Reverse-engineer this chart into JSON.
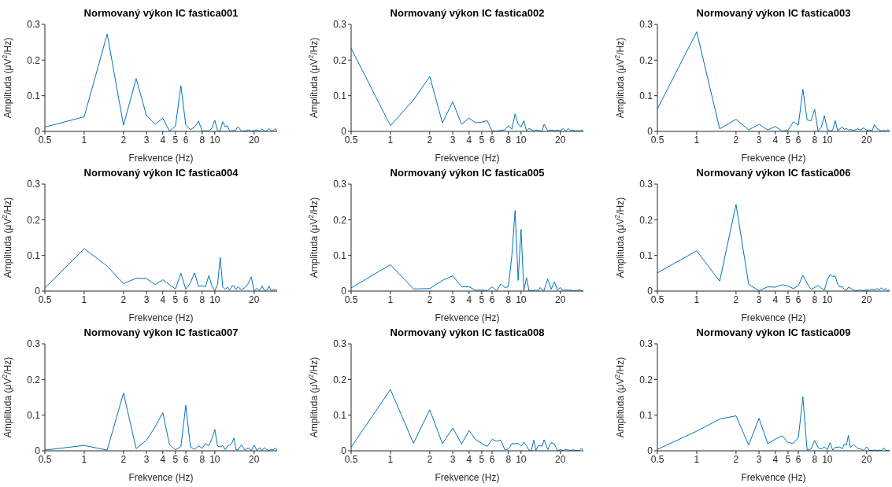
{
  "chart_data": [
    {
      "type": "line",
      "title": "Normovaný výkon IC fastica001",
      "xlabel": "Frekvence (Hz)",
      "ylabel": "Amplituda (μV$^{2}$/Hz)",
      "log": "x",
      "grid": false,
      "xlim": [
        0.5,
        30
      ],
      "xticks": [
        0.5,
        1,
        2,
        3,
        4,
        5,
        6,
        8,
        10,
        20
      ],
      "ylim": [
        0,
        0.3
      ],
      "yticks": [
        0,
        0.1,
        0.2,
        0.3
      ],
      "x": [
        0.5,
        1,
        1.5,
        2,
        2.5,
        3,
        3.5,
        4,
        4.5,
        5,
        5.5,
        6,
        6.5,
        7,
        7.5,
        8,
        8.5,
        9,
        9.5,
        10,
        10.5,
        11,
        11.5,
        12,
        12.5,
        13,
        13.5,
        14,
        14.5,
        15,
        16,
        17,
        18,
        19,
        20,
        21,
        22,
        23,
        24,
        25,
        26,
        27,
        28,
        29,
        30
      ],
      "series": [
        {
          "color": "#0072bd",
          "values": [
            0.012,
            0.041,
            0.273,
            0.017,
            0.148,
            0.044,
            0.02,
            0.037,
            0.001,
            0.015,
            0.128,
            0.017,
            0.005,
            0.012,
            0.029,
            0.001,
            0.002,
            0.001,
            0.009,
            0.031,
            0.002,
            0.001,
            0.027,
            0.013,
            0.016,
            0.001,
            0.002,
            0.002,
            0.004,
            0.013,
            0.001,
            0.001,
            0.004,
            0.001,
            0.002,
            0.004,
            0.001,
            0.007,
            0.001,
            0.002,
            0.008,
            0.001,
            0.002,
            0.007,
            0.001
          ]
        }
      ]
    },
    {
      "type": "line",
      "title": "Normovaný výkon IC fastica002",
      "xlabel": "Frekvence (Hz)",
      "ylabel": "Amplituda (μV$^{2}$/Hz)",
      "log": "x",
      "grid": false,
      "xlim": [
        0.5,
        30
      ],
      "xticks": [
        0.5,
        1,
        2,
        3,
        4,
        5,
        6,
        8,
        10,
        20
      ],
      "ylim": [
        0,
        0.3
      ],
      "yticks": [
        0,
        0.1,
        0.2,
        0.3
      ],
      "x": [
        0.5,
        1,
        1.5,
        2,
        2.5,
        3,
        3.5,
        4,
        4.5,
        5,
        5.5,
        6,
        6.5,
        7,
        7.5,
        8,
        8.5,
        9,
        9.5,
        10,
        10.5,
        11,
        11.5,
        12,
        12.5,
        13,
        13.5,
        14,
        14.5,
        15,
        16,
        17,
        18,
        19,
        20,
        21,
        22,
        23,
        24,
        25,
        26,
        27,
        28,
        29,
        30
      ],
      "series": [
        {
          "color": "#0072bd",
          "values": [
            0.233,
            0.016,
            0.088,
            0.154,
            0.024,
            0.083,
            0.02,
            0.037,
            0.024,
            0.026,
            0.03,
            0.001,
            0.001,
            0.003,
            0.004,
            0.016,
            0.006,
            0.049,
            0.02,
            0.013,
            0.03,
            0.001,
            0.008,
            0.005,
            0.001,
            0.004,
            0.003,
            0.002,
            0.001,
            0.02,
            0.002,
            0.004,
            0.002,
            0.004,
            0.001,
            0.008,
            0.001,
            0.008,
            0.002,
            0.004,
            0.001,
            0.003,
            0.001,
            0.004,
            0.001
          ]
        }
      ]
    },
    {
      "type": "line",
      "title": "Normovaný výkon IC fastica003",
      "xlabel": "Frekvence (Hz)",
      "ylabel": "Amplituda (μV$^{2}$/Hz)",
      "log": "x",
      "grid": false,
      "xlim": [
        0.5,
        30
      ],
      "xticks": [
        0.5,
        1,
        2,
        3,
        4,
        5,
        6,
        8,
        10,
        20
      ],
      "ylim": [
        0,
        0.3
      ],
      "yticks": [
        0,
        0.1,
        0.2,
        0.3
      ],
      "x": [
        0.5,
        1,
        1.5,
        2,
        2.5,
        3,
        3.5,
        4,
        4.5,
        5,
        5.5,
        6,
        6.5,
        7,
        7.5,
        8,
        8.5,
        9,
        9.5,
        10,
        10.5,
        11,
        11.5,
        12,
        12.5,
        13,
        13.5,
        14,
        14.5,
        15,
        16,
        17,
        18,
        19,
        20,
        21,
        22,
        23,
        24,
        25,
        26,
        27,
        28,
        29,
        30
      ],
      "series": [
        {
          "color": "#0072bd",
          "values": [
            0.063,
            0.279,
            0.007,
            0.034,
            0.004,
            0.02,
            0.004,
            0.014,
            0.001,
            0.003,
            0.027,
            0.017,
            0.118,
            0.032,
            0.03,
            0.062,
            0.001,
            0.012,
            0.044,
            0.005,
            0.001,
            0.004,
            0.03,
            0.002,
            0.007,
            0.013,
            0.005,
            0.008,
            0.004,
            0.005,
            0.003,
            0.007,
            0.004,
            0.01,
            0.003,
            0.004,
            0.002,
            0.019,
            0.008,
            0.004,
            0.001,
            0.003,
            0.001,
            0.004,
            0.001
          ]
        }
      ]
    },
    {
      "type": "line",
      "title": "Normovaný výkon IC fastica004",
      "xlabel": "Frekvence (Hz)",
      "ylabel": "Amplituda (μV$^{2}$/Hz)",
      "log": "x",
      "grid": false,
      "xlim": [
        0.5,
        30
      ],
      "xticks": [
        0.5,
        1,
        2,
        3,
        4,
        5,
        6,
        8,
        10,
        20
      ],
      "ylim": [
        0,
        0.3
      ],
      "yticks": [
        0,
        0.1,
        0.2,
        0.3
      ],
      "x": [
        0.5,
        1,
        1.5,
        2,
        2.5,
        3,
        3.5,
        4,
        4.5,
        5,
        5.5,
        6,
        6.5,
        7,
        7.5,
        8,
        8.5,
        9,
        9.5,
        10,
        10.5,
        11,
        11.5,
        12,
        12.5,
        13,
        13.5,
        14,
        14.5,
        15,
        16,
        17,
        18,
        19,
        20,
        21,
        22,
        23,
        24,
        25,
        26,
        27,
        28,
        29,
        30
      ],
      "series": [
        {
          "color": "#0072bd",
          "values": [
            0.009,
            0.119,
            0.07,
            0.021,
            0.036,
            0.035,
            0.018,
            0.032,
            0.018,
            0.006,
            0.05,
            0.005,
            0.023,
            0.051,
            0.013,
            0.015,
            0.012,
            0.044,
            0.015,
            0.001,
            0.019,
            0.095,
            0.012,
            0.005,
            0.011,
            0.003,
            0.014,
            0.015,
            0.004,
            0.012,
            0.004,
            0.01,
            0.021,
            0.04,
            0.001,
            0.008,
            0.001,
            0.014,
            0.001,
            0.003,
            0.014,
            0.001,
            0.003,
            0.004,
            0.002
          ]
        }
      ]
    },
    {
      "type": "line",
      "title": "Normovaný výkon IC fastica005",
      "xlabel": "Frekvence (Hz)",
      "ylabel": "Amplituda (μV$^{2}$/Hz)",
      "log": "x",
      "grid": false,
      "xlim": [
        0.5,
        30
      ],
      "xticks": [
        0.5,
        1,
        2,
        3,
        4,
        5,
        6,
        8,
        10,
        20
      ],
      "ylim": [
        0,
        0.3
      ],
      "yticks": [
        0,
        0.1,
        0.2,
        0.3
      ],
      "x": [
        0.5,
        1,
        1.5,
        2,
        2.5,
        3,
        3.5,
        4,
        4.5,
        5,
        5.5,
        6,
        6.5,
        7,
        7.5,
        8,
        8.5,
        9,
        9.5,
        10,
        10.5,
        11,
        11.5,
        12,
        12.5,
        13,
        13.5,
        14,
        14.5,
        15,
        16,
        17,
        18,
        19,
        20,
        21,
        22,
        23,
        24,
        25,
        26,
        27,
        28,
        29,
        30
      ],
      "series": [
        {
          "color": "#0072bd",
          "values": [
            0.009,
            0.074,
            0.006,
            0.007,
            0.03,
            0.043,
            0.012,
            0.012,
            0.002,
            0.003,
            0.001,
            0.012,
            0.001,
            0.02,
            0.01,
            0.012,
            0.1,
            0.226,
            0.03,
            0.173,
            0.001,
            0.038,
            0.001,
            0.002,
            0.001,
            0.003,
            0.001,
            0.01,
            0.003,
            0.002,
            0.034,
            0.005,
            0.026,
            0.003,
            0.01,
            0.001,
            0.004,
            0.002,
            0.003,
            0.001,
            0.002,
            0.001,
            0.004,
            0.001,
            0.002
          ]
        }
      ]
    },
    {
      "type": "line",
      "title": "Normovaný výkon IC fastica006",
      "xlabel": "Frekvence (Hz)",
      "ylabel": "Amplituda (μV$^{2}$/Hz)",
      "log": "x",
      "grid": false,
      "xlim": [
        0.5,
        30
      ],
      "xticks": [
        0.5,
        1,
        2,
        3,
        4,
        5,
        6,
        8,
        10,
        20
      ],
      "ylim": [
        0,
        0.3
      ],
      "yticks": [
        0,
        0.1,
        0.2,
        0.3
      ],
      "x": [
        0.5,
        1,
        1.5,
        2,
        2.5,
        3,
        3.5,
        4,
        4.5,
        5,
        5.5,
        6,
        6.5,
        7,
        7.5,
        8,
        8.5,
        9,
        9.5,
        10,
        10.5,
        11,
        11.5,
        12,
        12.5,
        13,
        13.5,
        14,
        14.5,
        15,
        16,
        17,
        18,
        19,
        20,
        21,
        22,
        23,
        24,
        25,
        26,
        27,
        28,
        29,
        30
      ],
      "series": [
        {
          "color": "#0072bd",
          "values": [
            0.051,
            0.113,
            0.028,
            0.243,
            0.019,
            0.001,
            0.012,
            0.011,
            0.018,
            0.014,
            0.007,
            0.015,
            0.044,
            0.022,
            0.005,
            0.01,
            0.016,
            0.008,
            0.003,
            0.032,
            0.046,
            0.041,
            0.041,
            0.02,
            0.011,
            0.013,
            0.005,
            0.002,
            0.011,
            0.008,
            0.002,
            0.001,
            0.003,
            0.001,
            0.004,
            0.002,
            0.006,
            0.003,
            0.007,
            0.004,
            0.009,
            0.004,
            0.007,
            0.002,
            0.003
          ]
        }
      ]
    },
    {
      "type": "line",
      "title": "Normovaný výkon IC fastica007",
      "xlabel": "Frekvence (Hz)",
      "ylabel": "Amplituda (μV$^{2}$/Hz)",
      "log": "x",
      "grid": false,
      "xlim": [
        0.5,
        30
      ],
      "xticks": [
        0.5,
        1,
        2,
        3,
        4,
        5,
        6,
        8,
        10,
        20
      ],
      "ylim": [
        0,
        0.3
      ],
      "yticks": [
        0,
        0.1,
        0.2,
        0.3
      ],
      "x": [
        0.5,
        1,
        1.5,
        2,
        2.5,
        3,
        3.5,
        4,
        4.5,
        5,
        5.5,
        6,
        6.5,
        7,
        7.5,
        8,
        8.5,
        9,
        9.5,
        10,
        10.5,
        11,
        11.5,
        12,
        12.5,
        13,
        13.5,
        14,
        14.5,
        15,
        16,
        17,
        18,
        19,
        20,
        21,
        22,
        23,
        24,
        25,
        26,
        27,
        28,
        29,
        30
      ],
      "series": [
        {
          "color": "#0072bd",
          "values": [
            0.002,
            0.015,
            0.002,
            0.162,
            0.006,
            0.03,
            0.068,
            0.107,
            0.017,
            0.003,
            0.012,
            0.128,
            0.011,
            0.004,
            0.014,
            0.007,
            0.02,
            0.014,
            0.034,
            0.06,
            0.013,
            0.011,
            0.015,
            0.003,
            0.013,
            0.016,
            0.021,
            0.036,
            0.004,
            0.002,
            0.017,
            0.002,
            0.008,
            0.001,
            0.016,
            0.001,
            0.009,
            0.001,
            0.009,
            0.003,
            0.001,
            0.004,
            0.002,
            0.008,
            0.002
          ]
        }
      ]
    },
    {
      "type": "line",
      "title": "Normovaný výkon IC fastica008",
      "xlabel": "Frekvence (Hz)",
      "ylabel": "Amplituda (μV$^{2}$/Hz)",
      "log": "x",
      "grid": false,
      "xlim": [
        0.5,
        30
      ],
      "xticks": [
        0.5,
        1,
        2,
        3,
        4,
        5,
        6,
        8,
        10,
        20
      ],
      "ylim": [
        0,
        0.3
      ],
      "yticks": [
        0,
        0.1,
        0.2,
        0.3
      ],
      "x": [
        0.5,
        1,
        1.5,
        2,
        2.5,
        3,
        3.5,
        4,
        4.5,
        5,
        5.5,
        6,
        6.5,
        7,
        7.5,
        8,
        8.5,
        9,
        9.5,
        10,
        10.5,
        11,
        11.5,
        12,
        12.5,
        13,
        13.5,
        14,
        14.5,
        15,
        16,
        17,
        18,
        19,
        20,
        21,
        22,
        23,
        24,
        25,
        26,
        27,
        28,
        29,
        30
      ],
      "series": [
        {
          "color": "#0072bd",
          "values": [
            0.01,
            0.172,
            0.021,
            0.115,
            0.02,
            0.064,
            0.019,
            0.057,
            0.031,
            0.021,
            0.012,
            0.032,
            0.027,
            0.03,
            0.003,
            0.005,
            0.02,
            0.02,
            0.021,
            0.013,
            0.024,
            0.014,
            0.002,
            0.001,
            0.03,
            0.001,
            0.014,
            0.014,
            0.013,
            0.031,
            0.003,
            0.023,
            0.019,
            0.001,
            0.003,
            0.001,
            0.004,
            0.002,
            0.001,
            0.003,
            0.001,
            0.001,
            0.001,
            0.007,
            0.001
          ]
        }
      ]
    },
    {
      "type": "line",
      "title": "Normovaný výkon IC fastica009",
      "xlabel": "Frekvence (Hz)",
      "ylabel": "Amplituda (μV$^{2}$/Hz)",
      "log": "x",
      "grid": false,
      "xlim": [
        0.5,
        30
      ],
      "xticks": [
        0.5,
        1,
        2,
        3,
        4,
        5,
        6,
        8,
        10,
        20
      ],
      "ylim": [
        0,
        0.3
      ],
      "yticks": [
        0,
        0.1,
        0.2,
        0.3
      ],
      "x": [
        0.5,
        1,
        1.5,
        2,
        2.5,
        3,
        3.5,
        4,
        4.5,
        5,
        5.5,
        6,
        6.5,
        7,
        7.5,
        8,
        8.5,
        9,
        9.5,
        10,
        10.5,
        11,
        11.5,
        12,
        12.5,
        13,
        13.5,
        14,
        14.5,
        15,
        16,
        17,
        18,
        19,
        20,
        21,
        22,
        23,
        24,
        25,
        26,
        27,
        28,
        29,
        30
      ],
      "series": [
        {
          "color": "#0072bd",
          "values": [
            0.004,
            0.055,
            0.089,
            0.098,
            0.016,
            0.091,
            0.02,
            0.033,
            0.042,
            0.023,
            0.021,
            0.037,
            0.151,
            0.002,
            0.005,
            0.029,
            0.009,
            0.005,
            0.011,
            0.003,
            0.023,
            0.002,
            0.01,
            0.01,
            0.011,
            0.005,
            0.019,
            0.016,
            0.043,
            0.01,
            0.017,
            0.007,
            0.005,
            0.001,
            0.011,
            0.001,
            0.001,
            0.002,
            0.001,
            0.002,
            0.001,
            0.008,
            0.001,
            0.001,
            0.002
          ]
        }
      ]
    }
  ]
}
